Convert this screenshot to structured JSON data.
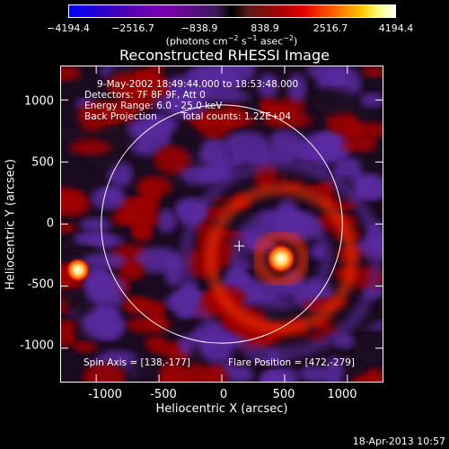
{
  "colorbar": {
    "ticks": [
      "−4194.4",
      "−2516.7",
      "−838.9",
      "838.9",
      "2516.7",
      "4194.4"
    ],
    "units_main": "(photons cm",
    "units_exp1": "−2",
    "units_mid1": " s",
    "units_exp2": "−1",
    "units_mid2": " asec",
    "units_exp3": "−2",
    "units_end": ")"
  },
  "title": "Reconstructed RHESSI Image",
  "info": {
    "time_range": "9-May-2002 18:49:44.000 to 18:53:48.000",
    "detectors": "Detectors: 7F 8F 9F, Att 0",
    "energy_range": "Energy Range: 6.0 - 25.0 keV",
    "method": "Back Projection",
    "total_counts": "Total counts: 1.22E+04",
    "spin_axis": "Spin Axis = [138,-177]",
    "flare_position": "Flare Position = [472,-279]"
  },
  "chart_data": {
    "type": "heatmap",
    "title": "Reconstructed RHESSI Image",
    "xlabel": "Heliocentric X (arcsec)",
    "ylabel": "Heliocentric Y (arcsec)",
    "x_ticks": [
      "-1000",
      "-500",
      "0",
      "500",
      "1000"
    ],
    "y_ticks": [
      "1000",
      "500",
      "0",
      "-500",
      "-1000"
    ],
    "x_tick_values": [
      -1000,
      -500,
      0,
      500,
      1000
    ],
    "y_tick_values": [
      1000,
      500,
      0,
      -500,
      -1000
    ],
    "xlim": [
      -1280,
      1280
    ],
    "ylim": [
      -1270,
      1270
    ],
    "colorbar_range": [
      -4194.4,
      4194.4
    ],
    "solar_limb_radius_arcsec": 960,
    "spin_axis": [
      138,
      -177
    ],
    "flare_position": [
      472,
      -279
    ],
    "secondary_source": [
      -1145,
      -370
    ],
    "colors": {
      "negative": "#5a2aa0",
      "dark": "#1a0a20",
      "low_positive": "#a00000",
      "mid_positive": "#ff3000",
      "high_positive": "#ffd040",
      "peak": "#ffffff",
      "limb": "#ffffff"
    }
  },
  "timestamp": "18-Apr-2013 10:57"
}
